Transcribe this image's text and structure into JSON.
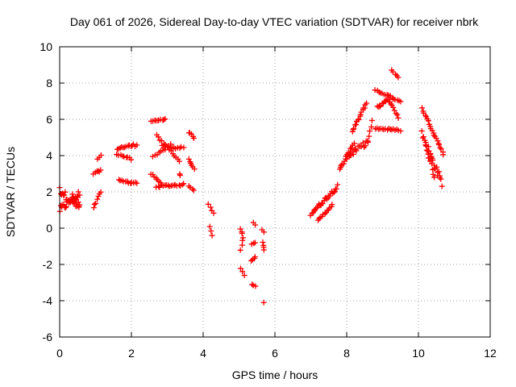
{
  "chart_data": {
    "type": "scatter",
    "title": "Day 061 of 2026, Sidereal Day-to-day VTEC variation (SDTVAR) for receiver nbrk",
    "xlabel": "GPS time / hours",
    "ylabel": "SDTVAR / TECUs",
    "xlim": [
      0,
      12
    ],
    "ylim": [
      -6,
      10
    ],
    "xticks": [
      "0",
      "2",
      "4",
      "6",
      "8",
      "10",
      "12"
    ],
    "yticks": [
      "-6",
      "-4",
      "-2",
      "0",
      "2",
      "4",
      "6",
      "8",
      "10"
    ],
    "grid": true,
    "marker": "plus",
    "color": "#ff0000",
    "segments": [
      {
        "x0": 0.0,
        "y0": 1.0,
        "x1": 0.55,
        "y1": 1.9,
        "n": 22,
        "s": 0.4
      },
      {
        "x0": 0.0,
        "y0": 2.1,
        "x1": 0.55,
        "y1": 1.1,
        "n": 22,
        "s": 0.4
      },
      {
        "x0": 0.55,
        "y0": 1.3,
        "x1": 0.35,
        "y1": 1.8,
        "n": 6,
        "s": 0.2
      },
      {
        "x0": 0.95,
        "y0": 1.1,
        "x1": 1.15,
        "y1": 2.0,
        "n": 7,
        "s": 0.15
      },
      {
        "x0": 0.95,
        "y0": 3.0,
        "x1": 1.15,
        "y1": 3.2,
        "n": 6,
        "s": 0.1
      },
      {
        "x0": 1.05,
        "y0": 3.8,
        "x1": 1.15,
        "y1": 4.0,
        "n": 3,
        "s": 0.05
      },
      {
        "x0": 1.6,
        "y0": 4.4,
        "x1": 2.15,
        "y1": 4.6,
        "n": 14,
        "s": 0.15
      },
      {
        "x0": 1.6,
        "y0": 4.1,
        "x1": 2.0,
        "y1": 3.8,
        "n": 9,
        "s": 0.1
      },
      {
        "x0": 1.65,
        "y0": 2.6,
        "x1": 2.15,
        "y1": 2.5,
        "n": 12,
        "s": 0.15
      },
      {
        "x0": 2.55,
        "y0": 5.9,
        "x1": 2.95,
        "y1": 6.0,
        "n": 10,
        "s": 0.05
      },
      {
        "x0": 2.6,
        "y0": 3.9,
        "x1": 3.1,
        "y1": 4.6,
        "n": 10,
        "s": 0.1
      },
      {
        "x0": 2.7,
        "y0": 5.1,
        "x1": 3.35,
        "y1": 3.7,
        "n": 14,
        "s": 0.1
      },
      {
        "x0": 2.85,
        "y0": 4.5,
        "x1": 3.45,
        "y1": 4.4,
        "n": 12,
        "s": 0.15
      },
      {
        "x0": 2.55,
        "y0": 3.0,
        "x1": 2.85,
        "y1": 2.4,
        "n": 8,
        "s": 0.1
      },
      {
        "x0": 2.7,
        "y0": 2.3,
        "x1": 3.45,
        "y1": 2.4,
        "n": 18,
        "s": 0.12
      },
      {
        "x0": 3.35,
        "y0": 2.9,
        "x1": 3.35,
        "y1": 3.0,
        "n": 2,
        "s": 0.05
      },
      {
        "x0": 3.6,
        "y0": 5.3,
        "x1": 3.75,
        "y1": 5.0,
        "n": 5,
        "s": 0.1
      },
      {
        "x0": 3.6,
        "y0": 3.8,
        "x1": 3.75,
        "y1": 3.3,
        "n": 6,
        "s": 0.1
      },
      {
        "x0": 3.6,
        "y0": 2.3,
        "x1": 3.75,
        "y1": 2.1,
        "n": 4,
        "s": 0.05
      },
      {
        "x0": 4.15,
        "y0": 1.3,
        "x1": 4.3,
        "y1": 0.8,
        "n": 4,
        "s": 0.1
      },
      {
        "x0": 4.2,
        "y0": 0.1,
        "x1": 4.25,
        "y1": -0.4,
        "n": 3,
        "s": 0.05
      },
      {
        "x0": 5.05,
        "y0": 0.0,
        "x1": 5.1,
        "y1": -0.5,
        "n": 4,
        "s": 0.1
      },
      {
        "x0": 5.05,
        "y0": -1.2,
        "x1": 5.1,
        "y1": -0.7,
        "n": 3,
        "s": 0.05
      },
      {
        "x0": 5.05,
        "y0": -2.2,
        "x1": 5.15,
        "y1": -2.6,
        "n": 3,
        "s": 0.05
      },
      {
        "x0": 5.4,
        "y0": 0.3,
        "x1": 5.45,
        "y1": 0.2,
        "n": 2,
        "s": 0.05
      },
      {
        "x0": 5.35,
        "y0": -0.9,
        "x1": 5.45,
        "y1": -0.8,
        "n": 3,
        "s": 0.05
      },
      {
        "x0": 5.35,
        "y0": -1.8,
        "x1": 5.45,
        "y1": -1.6,
        "n": 4,
        "s": 0.05
      },
      {
        "x0": 5.35,
        "y0": -3.1,
        "x1": 5.45,
        "y1": -3.2,
        "n": 3,
        "s": 0.05
      },
      {
        "x0": 5.65,
        "y0": -0.8,
        "x1": 5.7,
        "y1": -1.2,
        "n": 4,
        "s": 0.05
      },
      {
        "x0": 5.65,
        "y0": -0.1,
        "x1": 5.7,
        "y1": -0.2,
        "n": 2,
        "s": 0.03
      },
      {
        "x0": 5.7,
        "y0": -4.1,
        "x1": 5.7,
        "y1": -4.1,
        "n": 1,
        "s": 0.0
      },
      {
        "x0": 7.0,
        "y0": 0.8,
        "x1": 7.75,
        "y1": 2.3,
        "n": 28,
        "s": 0.2
      },
      {
        "x0": 7.2,
        "y0": 0.4,
        "x1": 7.6,
        "y1": 1.3,
        "n": 12,
        "s": 0.1
      },
      {
        "x0": 7.8,
        "y0": 3.2,
        "x1": 8.2,
        "y1": 4.7,
        "n": 16,
        "s": 0.15
      },
      {
        "x0": 8.0,
        "y0": 3.9,
        "x1": 8.6,
        "y1": 4.8,
        "n": 20,
        "s": 0.3
      },
      {
        "x0": 8.15,
        "y0": 5.3,
        "x1": 8.55,
        "y1": 6.9,
        "n": 16,
        "s": 0.15
      },
      {
        "x0": 8.6,
        "y0": 4.8,
        "x1": 8.7,
        "y1": 5.9,
        "n": 5,
        "s": 0.1
      },
      {
        "x0": 8.8,
        "y0": 7.6,
        "x1": 9.5,
        "y1": 7.0,
        "n": 16,
        "s": 0.1
      },
      {
        "x0": 8.85,
        "y0": 6.7,
        "x1": 9.2,
        "y1": 7.1,
        "n": 12,
        "s": 0.2
      },
      {
        "x0": 9.2,
        "y0": 7.0,
        "x1": 9.45,
        "y1": 6.1,
        "n": 8,
        "s": 0.1
      },
      {
        "x0": 8.8,
        "y0": 5.5,
        "x1": 9.5,
        "y1": 5.4,
        "n": 16,
        "s": 0.1
      },
      {
        "x0": 9.25,
        "y0": 8.7,
        "x1": 9.45,
        "y1": 8.3,
        "n": 5,
        "s": 0.05
      },
      {
        "x0": 10.1,
        "y0": 6.6,
        "x1": 10.7,
        "y1": 4.1,
        "n": 22,
        "s": 0.1
      },
      {
        "x0": 10.1,
        "y0": 5.2,
        "x1": 10.65,
        "y1": 2.5,
        "n": 26,
        "s": 0.4
      },
      {
        "x0": 10.2,
        "y0": 4.5,
        "x1": 10.45,
        "y1": 2.9,
        "n": 10,
        "s": 0.3
      }
    ]
  }
}
